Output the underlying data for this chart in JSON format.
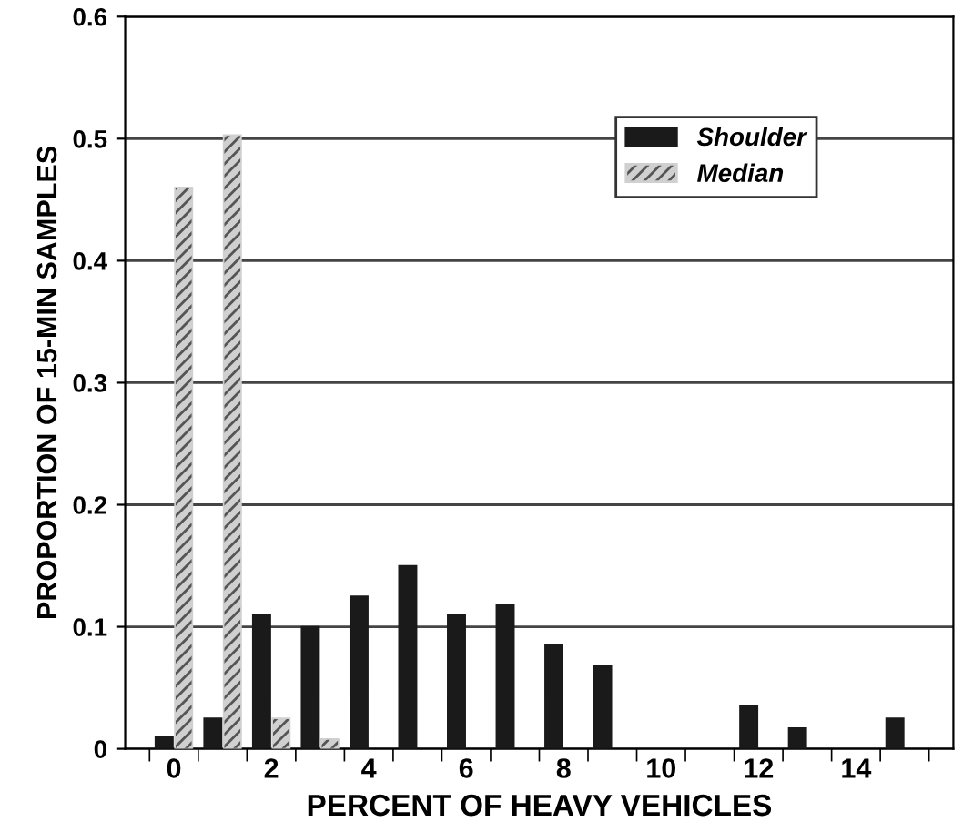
{
  "chart_data": {
    "type": "bar",
    "xlabel": "PERCENT OF HEAVY VEHICLES",
    "ylabel": "PROPORTION OF 15-MIN SAMPLES",
    "categories": [
      "0",
      null,
      "2",
      null,
      "4",
      null,
      "6",
      null,
      "8",
      null,
      "10",
      null,
      "12",
      null,
      "14",
      null
    ],
    "series": [
      {
        "name": "Shoulder",
        "color": "#1a1a1a",
        "values": [
          0.01,
          0.025,
          0.11,
          0.1,
          0.125,
          0.15,
          0.11,
          0.118,
          0.085,
          0.068,
          0,
          0,
          0.035,
          0.017,
          0,
          0.025
        ]
      },
      {
        "name": "Median",
        "color": "#d0d0d0",
        "values": [
          0.46,
          0.503,
          0.025,
          0.008,
          0,
          0,
          0,
          0,
          0,
          0,
          0,
          0,
          0,
          0,
          0,
          0
        ]
      }
    ],
    "ylim": [
      0,
      0.6
    ],
    "yticks": [
      0,
      0.1,
      0.2,
      0.3,
      0.4,
      0.5,
      0.6
    ],
    "grid": "y",
    "legend": "top right"
  }
}
